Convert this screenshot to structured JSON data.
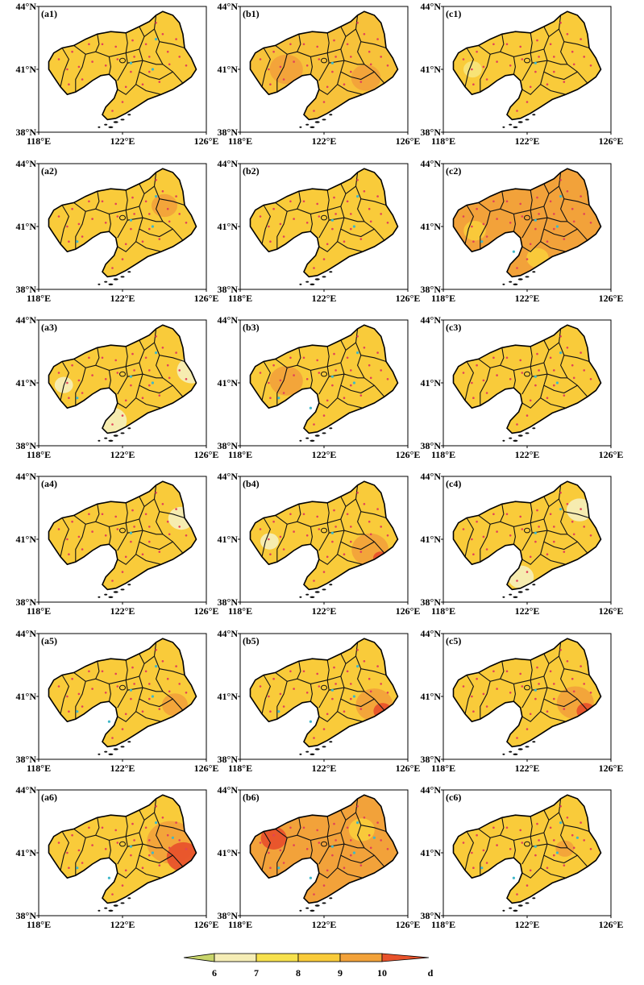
{
  "axis_labels": {
    "lat_top": "44°N",
    "lat_mid": "41°N",
    "lat_bottom": "38°N",
    "lon_left": "118°E",
    "lon_mid": "122°E",
    "lon_right": "126°E"
  },
  "panels": [
    {
      "label": "(a1)",
      "base": "#F9CB3A",
      "patches": [],
      "cyan": 3
    },
    {
      "label": "(b1)",
      "base": "#F7C23A",
      "patches": [
        {
          "color": "#F2A23A",
          "lon": 120.2,
          "lat": 41.0,
          "r": 0.09
        },
        {
          "color": "#F2A23A",
          "lon": 124.0,
          "lat": 40.6,
          "r": 0.08
        }
      ],
      "cyan": 1
    },
    {
      "label": "(c1)",
      "base": "#F9CB3A",
      "patches": [
        {
          "color": "#F7E47A",
          "lon": 119.4,
          "lat": 41.0,
          "r": 0.05
        }
      ],
      "cyan": 1
    },
    {
      "label": "(a2)",
      "base": "#F9CB3A",
      "patches": [
        {
          "color": "#F2A23A",
          "lon": 124.0,
          "lat": 42.0,
          "r": 0.07
        }
      ],
      "cyan": 4
    },
    {
      "label": "(b2)",
      "base": "#F9CB3A",
      "patches": [],
      "cyan": 3
    },
    {
      "label": "(c2)",
      "base": "#F2A23A",
      "patches": [
        {
          "color": "#F9CB3A",
          "lon": 119.5,
          "lat": 40.8,
          "r": 0.06
        },
        {
          "color": "#F9CB3A",
          "lon": 122.5,
          "lat": 39.5,
          "r": 0.06
        }
      ],
      "cyan": 5
    },
    {
      "label": "(a3)",
      "base": "#F9CB3A",
      "patches": [
        {
          "color": "#F5EDB6",
          "lon": 125.3,
          "lat": 41.6,
          "r": 0.08
        },
        {
          "color": "#F5EDB6",
          "lon": 121.5,
          "lat": 39.2,
          "r": 0.08
        },
        {
          "color": "#F5EDB6",
          "lon": 119.2,
          "lat": 40.9,
          "r": 0.05
        }
      ],
      "cyan": 4
    },
    {
      "label": "(b3)",
      "base": "#F9CB3A",
      "patches": [
        {
          "color": "#F2A23A",
          "lon": 120.2,
          "lat": 41.1,
          "r": 0.09
        }
      ],
      "cyan": 5
    },
    {
      "label": "(c3)",
      "base": "#F9CB3A",
      "patches": [],
      "cyan": 3
    },
    {
      "label": "(a4)",
      "base": "#F9CB3A",
      "patches": [
        {
          "color": "#F5EDB6",
          "lon": 124.8,
          "lat": 42.0,
          "r": 0.07
        }
      ],
      "cyan": 1
    },
    {
      "label": "(b4)",
      "base": "#F9CB3A",
      "patches": [
        {
          "color": "#F2A23A",
          "lon": 124.2,
          "lat": 40.5,
          "r": 0.1
        },
        {
          "color": "#E8522B",
          "lon": 124.7,
          "lat": 40.1,
          "r": 0.04
        },
        {
          "color": "#F5EDB6",
          "lon": 119.4,
          "lat": 40.9,
          "r": 0.05
        }
      ],
      "cyan": 1
    },
    {
      "label": "(c4)",
      "base": "#F9CB3A",
      "patches": [
        {
          "color": "#F5EDB6",
          "lon": 124.5,
          "lat": 42.4,
          "r": 0.07
        },
        {
          "color": "#F5EDB6",
          "lon": 121.7,
          "lat": 39.2,
          "r": 0.07
        }
      ],
      "cyan": 2
    },
    {
      "label": "(a5)",
      "base": "#F9CB3A",
      "patches": [
        {
          "color": "#F2A23A",
          "lon": 124.5,
          "lat": 40.6,
          "r": 0.07
        }
      ],
      "cyan": 5
    },
    {
      "label": "(b5)",
      "base": "#F9CB3A",
      "patches": [
        {
          "color": "#F2A23A",
          "lon": 124.4,
          "lat": 40.6,
          "r": 0.1
        },
        {
          "color": "#E8522B",
          "lon": 124.8,
          "lat": 40.3,
          "r": 0.05
        }
      ],
      "cyan": 5
    },
    {
      "label": "(c5)",
      "base": "#F9CB3A",
      "patches": [
        {
          "color": "#F2A23A",
          "lon": 124.3,
          "lat": 40.7,
          "r": 0.1
        },
        {
          "color": "#E8522B",
          "lon": 124.8,
          "lat": 40.3,
          "r": 0.05
        }
      ],
      "cyan": 1
    },
    {
      "label": "(a6)",
      "base": "#F9CB3A",
      "patches": [
        {
          "color": "#F2A23A",
          "lon": 124.3,
          "lat": 41.5,
          "r": 0.13
        },
        {
          "color": "#E8522B",
          "lon": 124.9,
          "lat": 40.8,
          "r": 0.09
        }
      ],
      "cyan": 6
    },
    {
      "label": "(b6)",
      "base": "#F2A23A",
      "patches": [
        {
          "color": "#E8522B",
          "lon": 119.6,
          "lat": 41.7,
          "r": 0.07
        },
        {
          "color": "#F9CB3A",
          "lon": 123.8,
          "lat": 42.1,
          "r": 0.07
        }
      ],
      "cyan": 6
    },
    {
      "label": "(c6)",
      "base": "#F9CB3A",
      "patches": [
        {
          "color": "#F2A23A",
          "lon": 123.8,
          "lat": 41.2,
          "r": 0.05
        }
      ],
      "cyan": 6
    }
  ],
  "colorbar": {
    "colors": [
      "#C7D46A",
      "#F5EDB6",
      "#F7E14D",
      "#F9CB3A",
      "#F2A23A",
      "#E8522B"
    ],
    "ticks": [
      "6",
      "7",
      "8",
      "9",
      "10"
    ],
    "unit": "d"
  }
}
